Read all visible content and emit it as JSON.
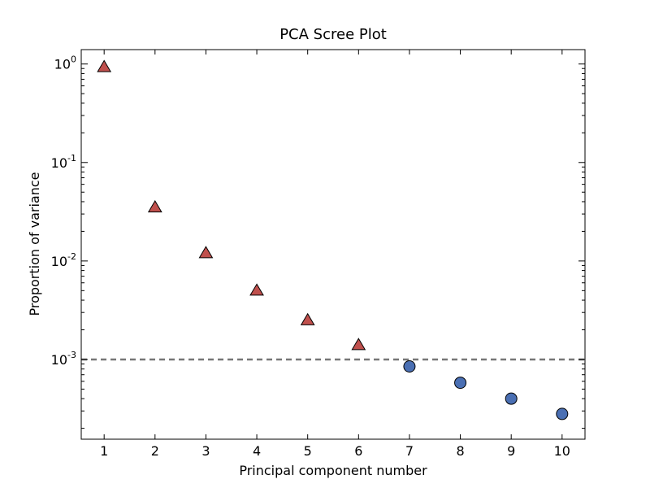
{
  "chart_data": {
    "type": "scatter",
    "title": "PCA Scree Plot",
    "xlabel": "Principal component number",
    "ylabel": "Proportion of variance",
    "x_ticks": [
      "1",
      "2",
      "3",
      "4",
      "5",
      "6",
      "7",
      "8",
      "9",
      "10"
    ],
    "y_ticks": [
      {
        "base": "10",
        "exp": "0",
        "value": 1
      },
      {
        "base": "10",
        "exp": "-1",
        "value": 0.1
      },
      {
        "base": "10",
        "exp": "-2",
        "value": 0.01
      },
      {
        "base": "10",
        "exp": "-3",
        "value": 0.001
      }
    ],
    "x_range": [
      0.55,
      10.45
    ],
    "y_range": [
      0.000155,
      1.4
    ],
    "y_scale": "log",
    "threshold": {
      "value": 0.001,
      "style": "dashed",
      "color": "#777777"
    },
    "series": [
      {
        "marker": "triangle",
        "color": "#c0504d",
        "x": [
          1,
          2,
          3,
          4,
          5,
          6
        ],
        "y": [
          0.93,
          0.035,
          0.012,
          0.005,
          0.0025,
          0.0014
        ]
      },
      {
        "marker": "circle",
        "color": "#4a6fb3",
        "x": [
          7,
          8,
          9,
          10
        ],
        "y": [
          0.00085,
          0.00058,
          0.0004,
          0.00028
        ]
      }
    ]
  }
}
